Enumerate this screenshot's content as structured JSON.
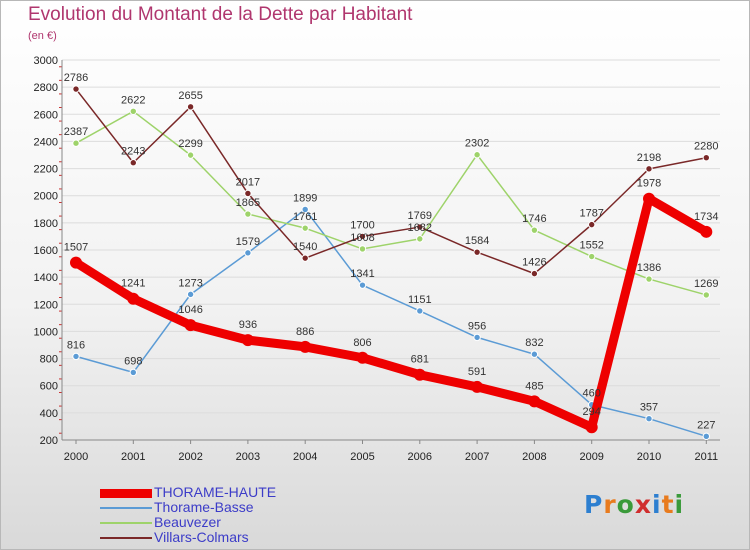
{
  "header": {
    "title": "Evolution du Montant de la Dette par Habitant",
    "subtitle": "(en €)"
  },
  "logo": {
    "letters": [
      "P",
      "r",
      "o",
      "x",
      "i",
      "t",
      "i"
    ],
    "colors": [
      "#2d7fd0",
      "#e87b1e",
      "#3a9a3a",
      "#d02d2d",
      "#2d7fd0",
      "#e87b1e",
      "#3a9a3a"
    ]
  },
  "chart_data": {
    "type": "line",
    "title": "Evolution du Montant de la Dette par Habitant",
    "subtitle": "(en €)",
    "xlabel": "",
    "ylabel": "",
    "x": [
      "2000",
      "2001",
      "2002",
      "2003",
      "2004",
      "2005",
      "2006",
      "2007",
      "2008",
      "2009",
      "2010",
      "2011"
    ],
    "ylim": [
      200,
      3000
    ],
    "yticks": [
      200,
      400,
      600,
      800,
      1000,
      1200,
      1400,
      1600,
      1800,
      2000,
      2200,
      2400,
      2600,
      2800,
      3000
    ],
    "grid": "horizontal",
    "legend": "bottom-left",
    "series": [
      {
        "name": "THORAME-HAUTE",
        "color": "#ee0000",
        "emphasis": true,
        "values": [
          1507,
          1241,
          1046,
          936,
          886,
          806,
          681,
          591,
          485,
          294,
          1978,
          1734
        ],
        "labels": [
          "1507",
          "1241",
          "1046",
          "936",
          "886",
          "806",
          "681",
          "591",
          "485",
          "294",
          "1978",
          "1734"
        ]
      },
      {
        "name": "Thorame-Basse",
        "color": "#5b9bd5",
        "values": [
          816,
          698,
          1273,
          1579,
          1899,
          1341,
          1151,
          956,
          832,
          460,
          357,
          227
        ],
        "labels": [
          "816",
          "698",
          "1273",
          "1579",
          "1899",
          "1341",
          "1151",
          "956",
          "832",
          "460",
          "357",
          "227"
        ]
      },
      {
        "name": "Beauvezer",
        "color": "#9ed36a",
        "values": [
          2387,
          2622,
          2299,
          1865,
          1761,
          1608,
          1682,
          2302,
          1746,
          1552,
          1386,
          1269
        ],
        "labels": [
          "2387",
          "2622",
          "2299",
          "1865",
          "1761",
          "1608",
          "1682",
          "2302",
          "1746",
          "1552",
          "1386",
          "1269"
        ]
      },
      {
        "name": "Villars-Colmars",
        "color": "#7a2828",
        "values": [
          2786,
          2243,
          2655,
          2017,
          1540,
          1700,
          1769,
          1584,
          1426,
          1787,
          2198,
          2280
        ],
        "labels": [
          "2786",
          "2243",
          "2655",
          "2017",
          "1540",
          "1700",
          "1769",
          "1584",
          "1426",
          "1787",
          "2198",
          "2280"
        ]
      }
    ]
  }
}
